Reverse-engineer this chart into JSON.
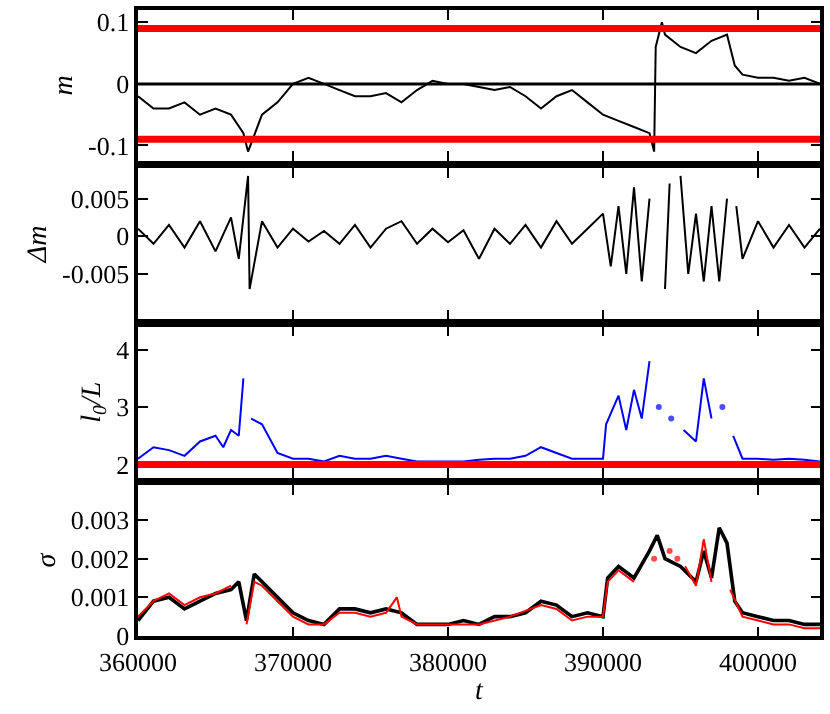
{
  "chart_data": [
    {
      "type": "line",
      "ylabel": "m",
      "xlim": [
        360000,
        404000
      ],
      "xticks": [
        360000,
        370000,
        380000,
        390000,
        400000
      ],
      "ylim": [
        -0.125,
        0.12
      ],
      "yticks": [
        -0.1,
        0,
        0.1
      ],
      "tick_labels": "y",
      "x": [
        360000,
        361000,
        362000,
        363000,
        364000,
        365000,
        366000,
        366800,
        367100,
        368000,
        369000,
        370000,
        371000,
        372000,
        373000,
        374000,
        375000,
        376000,
        377000,
        378000,
        379000,
        380000,
        381000,
        382000,
        383000,
        384000,
        385000,
        386000,
        387000,
        388000,
        389000,
        390000,
        391000,
        392000,
        393000,
        393300,
        393400,
        393800,
        394000,
        395000,
        396000,
        397000,
        398000,
        398500,
        399000,
        400000,
        401000,
        402000,
        403000,
        404000
      ],
      "series": [
        {
          "color": "#000000",
          "values": [
            -0.02,
            -0.04,
            -0.04,
            -0.03,
            -0.05,
            -0.04,
            -0.05,
            -0.08,
            -0.11,
            -0.05,
            -0.03,
            0.0,
            0.01,
            0.0,
            -0.01,
            -0.02,
            -0.02,
            -0.015,
            -0.03,
            -0.01,
            0.005,
            0.0,
            0.0,
            -0.005,
            -0.01,
            -0.005,
            -0.02,
            -0.04,
            -0.02,
            -0.01,
            -0.03,
            -0.05,
            -0.06,
            -0.07,
            -0.08,
            -0.11,
            0.06,
            0.1,
            0.08,
            0.06,
            0.05,
            0.07,
            0.08,
            0.03,
            0.015,
            0.01,
            0.01,
            0.005,
            0.01,
            0.0
          ]
        }
      ],
      "ref_lines": [
        {
          "axis": "y",
          "value": 0.09,
          "color": "#ff0000"
        },
        {
          "axis": "y",
          "value": -0.09,
          "color": "#ff0000"
        },
        {
          "axis": "y",
          "value": 0,
          "color": "#000000"
        }
      ]
    },
    {
      "type": "line",
      "ylabel": "Δm",
      "xlim": [
        360000,
        404000
      ],
      "xticks": [
        360000,
        370000,
        380000,
        390000,
        400000
      ],
      "ylim": [
        -0.011,
        0.009
      ],
      "yticks": [
        -0.005,
        0,
        0.005
      ],
      "tick_labels": "y",
      "x": [
        360000,
        361000,
        362000,
        363000,
        364000,
        365000,
        366000,
        366500,
        367100,
        367200,
        368000,
        369000,
        370000,
        371000,
        372000,
        373000,
        374000,
        375000,
        376000,
        377000,
        378000,
        379000,
        380000,
        381000,
        382000,
        383000,
        384000,
        385000,
        386000,
        387000,
        388000,
        389000,
        390000,
        390500,
        391000,
        391500,
        392000,
        392500,
        393000,
        393300,
        393500,
        394000,
        394300,
        394600,
        395000,
        395500,
        396000,
        396500,
        397000,
        397500,
        398000,
        398300,
        398600,
        399000,
        400000,
        401000,
        402000,
        403000,
        404000
      ],
      "series": [
        {
          "color": "#000000",
          "values": [
            0.001,
            -0.001,
            0.0015,
            -0.0015,
            0.002,
            -0.002,
            0.0025,
            -0.003,
            0.008,
            -0.007,
            0.002,
            -0.0015,
            0.001,
            -0.0007,
            0.0007,
            -0.001,
            0.0015,
            -0.0015,
            0.001,
            0.002,
            -0.001,
            0.001,
            -0.0008,
            0.0008,
            -0.003,
            0.001,
            -0.001,
            0.0015,
            -0.0015,
            0.002,
            -0.001,
            0.001,
            0.003,
            -0.004,
            0.004,
            -0.005,
            0.0065,
            -0.006,
            0.005,
            null,
            null,
            -0.007,
            0.007,
            null,
            0.008,
            -0.005,
            0.003,
            -0.006,
            0.004,
            -0.006,
            0.005,
            null,
            0.004,
            -0.003,
            0.002,
            -0.0015,
            0.0015,
            -0.0015,
            0.001
          ]
        }
      ]
    },
    {
      "type": "line",
      "ylabel": "l$_{0}$/L",
      "xlim": [
        360000,
        404000
      ],
      "xticks": [
        360000,
        370000,
        380000,
        390000,
        400000
      ],
      "ylim": [
        1.77,
        4.4
      ],
      "yticks": [
        2,
        3,
        4
      ],
      "tick_labels": "y",
      "x": [
        360000,
        361000,
        362000,
        363000,
        364000,
        365000,
        365500,
        366000,
        366500,
        366800,
        367000,
        367300,
        368000,
        369000,
        370000,
        371000,
        372000,
        373000,
        374000,
        375000,
        376000,
        377000,
        378000,
        379000,
        380000,
        381000,
        382000,
        383000,
        384000,
        385000,
        386000,
        387000,
        388000,
        389000,
        390000,
        390200,
        391000,
        391500,
        392000,
        392500,
        393000,
        393300,
        393600,
        394000,
        394400,
        394800,
        395200,
        396000,
        396500,
        397000,
        397300,
        397700,
        398000,
        398400,
        399000,
        400000,
        401000,
        402000,
        403000,
        404000
      ],
      "series": [
        {
          "color": "#0000ff",
          "values": [
            2.1,
            2.3,
            2.25,
            2.15,
            2.4,
            2.5,
            2.3,
            2.6,
            2.5,
            3.5,
            null,
            2.8,
            2.7,
            2.2,
            2.1,
            2.1,
            2.05,
            2.15,
            2.1,
            2.1,
            2.15,
            2.1,
            2.05,
            2.05,
            2.05,
            2.05,
            2.08,
            2.1,
            2.1,
            2.15,
            2.3,
            2.2,
            2.1,
            2.1,
            2.1,
            2.7,
            3.2,
            2.6,
            3.3,
            2.8,
            3.8,
            null,
            3.0,
            null,
            2.8,
            null,
            2.6,
            2.4,
            3.5,
            2.8,
            null,
            3.0,
            null,
            2.5,
            2.1,
            2.1,
            2.08,
            2.1,
            2.08,
            2.05
          ]
        }
      ],
      "ref_lines": [
        {
          "axis": "y",
          "value": 2,
          "color": "#ff0000"
        }
      ]
    },
    {
      "type": "line",
      "ylabel": "σ",
      "xlabel": "t",
      "xlim": [
        360000,
        404000
      ],
      "xticks": [
        360000,
        370000,
        380000,
        390000,
        400000
      ],
      "ylim": [
        0,
        0.0039
      ],
      "yticks": [
        0,
        0.001,
        0.002,
        0.003
      ],
      "series": [
        {
          "color": "#000000",
          "x": [
            360000,
            361000,
            362000,
            363000,
            364000,
            365000,
            366000,
            366500,
            367000,
            367500,
            368000,
            369000,
            370000,
            371000,
            372000,
            373000,
            374000,
            375000,
            376000,
            377000,
            378000,
            379000,
            380000,
            381000,
            382000,
            383000,
            384000,
            385000,
            386000,
            387000,
            388000,
            389000,
            390000,
            390300,
            391000,
            392000,
            393000,
            393500,
            394000,
            395000,
            396000,
            396500,
            397000,
            397500,
            398000,
            398500,
            399000,
            400000,
            401000,
            402000,
            403000,
            404000
          ],
          "values": [
            0.0004,
            0.0009,
            0.001,
            0.0007,
            0.0009,
            0.0011,
            0.0012,
            0.0014,
            0.0004,
            0.0016,
            0.0014,
            0.001,
            0.0006,
            0.0004,
            0.0003,
            0.0007,
            0.0007,
            0.0006,
            0.0007,
            0.0006,
            0.0003,
            0.0003,
            0.0003,
            0.0004,
            0.0003,
            0.0005,
            0.0005,
            0.0006,
            0.0009,
            0.0008,
            0.0005,
            0.0006,
            0.0005,
            0.0015,
            0.0018,
            0.0015,
            0.0022,
            0.0026,
            0.002,
            0.0018,
            0.0014,
            0.0022,
            0.0015,
            0.0028,
            0.0024,
            0.0009,
            0.0006,
            0.0005,
            0.0004,
            0.0004,
            0.0003,
            0.0003
          ]
        },
        {
          "color": "#ff0000",
          "x": [
            360000,
            361000,
            362000,
            363000,
            364000,
            365000,
            366000,
            366800,
            367000,
            367500,
            368000,
            369000,
            370000,
            371000,
            372000,
            373000,
            374000,
            375000,
            376000,
            376700,
            377000,
            378000,
            380000,
            382000,
            384000,
            386000,
            387000,
            388000,
            389000,
            390000,
            390300,
            391000,
            392000,
            393000,
            393300,
            394000,
            394300,
            394500,
            394800,
            395000,
            395300,
            396000,
            396500,
            397000,
            397800,
            398200,
            399000,
            400000,
            401000,
            402000,
            403000,
            404000
          ],
          "values": [
            0.0005,
            0.0009,
            0.0011,
            0.0008,
            0.001,
            0.0011,
            0.0013,
            null,
            0.0003,
            0.0014,
            0.0013,
            0.0009,
            0.0005,
            0.0003,
            0.0003,
            0.0006,
            0.0006,
            0.0005,
            0.0006,
            0.001,
            0.0005,
            0.0003,
            0.0003,
            0.0003,
            0.0005,
            0.0008,
            0.0007,
            0.0004,
            0.0005,
            0.0005,
            0.0014,
            0.0017,
            0.0014,
            null,
            0.002,
            null,
            0.0022,
            null,
            0.002,
            null,
            0.0018,
            0.0013,
            0.0025,
            0.0014,
            null,
            0.0012,
            0.0005,
            0.0004,
            0.0003,
            0.0003,
            0.0002,
            0.0002
          ]
        }
      ]
    }
  ]
}
